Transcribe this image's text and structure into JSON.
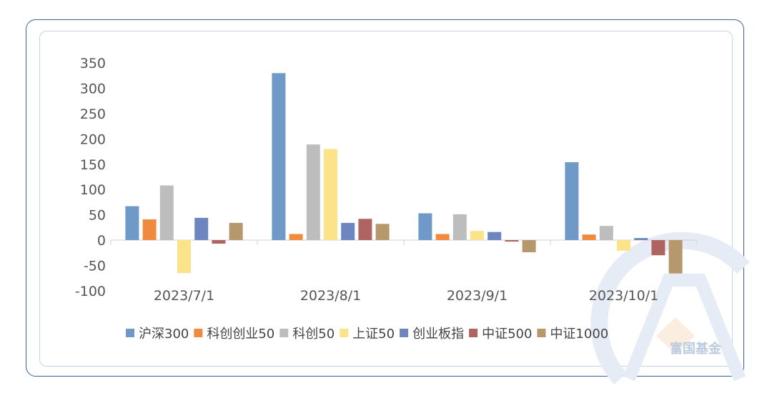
{
  "watermark": {
    "text": "富国基金"
  },
  "chart_data": {
    "type": "bar",
    "categories": [
      "2023/7/1",
      "2023/8/1",
      "2023/9/1",
      "2023/10/1"
    ],
    "series": [
      {
        "name": "沪深300",
        "color": "#6f9ac8",
        "values": [
          67,
          330,
          53,
          154
        ]
      },
      {
        "name": "科创创业50",
        "color": "#f08a3e",
        "values": [
          41,
          12,
          12,
          11
        ]
      },
      {
        "name": "科创50",
        "color": "#bdbdbd",
        "values": [
          108,
          189,
          51,
          28
        ]
      },
      {
        "name": "上证50",
        "color": "#fbe38a",
        "values": [
          -65,
          180,
          18,
          -21
        ]
      },
      {
        "name": "创业板指",
        "color": "#6e86bf",
        "values": [
          44,
          34,
          16,
          4
        ]
      },
      {
        "name": "中证500",
        "color": "#b06462",
        "values": [
          -7,
          42,
          -3,
          -30
        ]
      },
      {
        "name": "中证1000",
        "color": "#b7976c",
        "values": [
          34,
          32,
          -24,
          -66
        ]
      }
    ],
    "yticks": [
      "350",
      "300",
      "250",
      "200",
      "150",
      "100",
      "50",
      "0",
      "-50",
      "-100"
    ],
    "ylim": [
      -100,
      350
    ],
    "grid": false,
    "legend_position": "bottom"
  }
}
